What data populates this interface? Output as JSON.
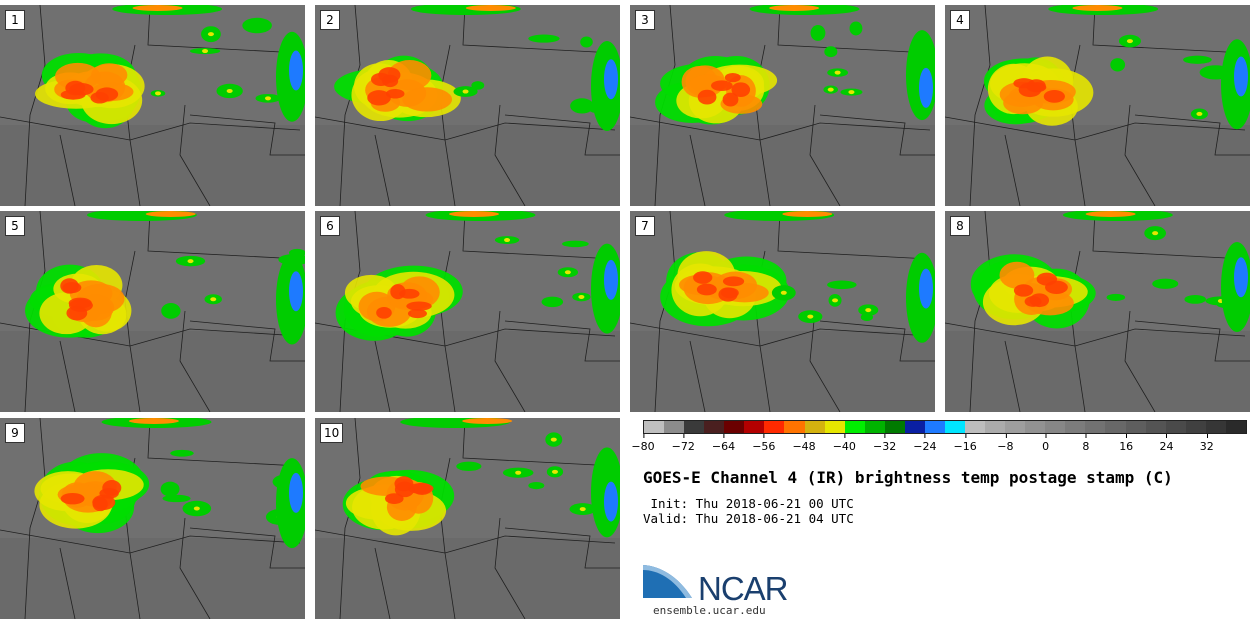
{
  "panels": [
    {
      "label": "1"
    },
    {
      "label": "2"
    },
    {
      "label": "3"
    },
    {
      "label": "4"
    },
    {
      "label": "5"
    },
    {
      "label": "6"
    },
    {
      "label": "7"
    },
    {
      "label": "8"
    },
    {
      "label": "9"
    },
    {
      "label": "10"
    }
  ],
  "colorbar": {
    "colors": [
      "#bfbfbf",
      "#8c8c8c",
      "#3a3a3a",
      "#4a1f1f",
      "#6b0000",
      "#b30000",
      "#ff2a00",
      "#ff7300",
      "#d4b20f",
      "#e6e600",
      "#00ee00",
      "#00b300",
      "#007a00",
      "#0a1fa3",
      "#1e7aff",
      "#00e5ff",
      "#bdbdbd",
      "#ababab",
      "#9e9e9e",
      "#929292",
      "#878787",
      "#7c7c7c",
      "#727272",
      "#686868",
      "#5e5e5e",
      "#545454",
      "#4a4a4a",
      "#404040",
      "#363636",
      "#2a2a2a"
    ],
    "ticks": [
      "−80",
      "−72",
      "−64",
      "−56",
      "−48",
      "−40",
      "−32",
      "−24",
      "−16",
      "−8",
      "0",
      "8",
      "16",
      "24",
      "32"
    ]
  },
  "title": "GOES-E Channel 4 (IR) brightness temp postage stamp (C)",
  "init": " Init: Thu 2018-06-21 00 UTC",
  "valid": "Valid: Thu 2018-06-21 04 UTC",
  "logo": {
    "text": "NCAR",
    "colors": {
      "blue": "#1f6fb4",
      "dark": "#1a3f6e"
    }
  },
  "website": "ensemble.ucar.edu"
}
